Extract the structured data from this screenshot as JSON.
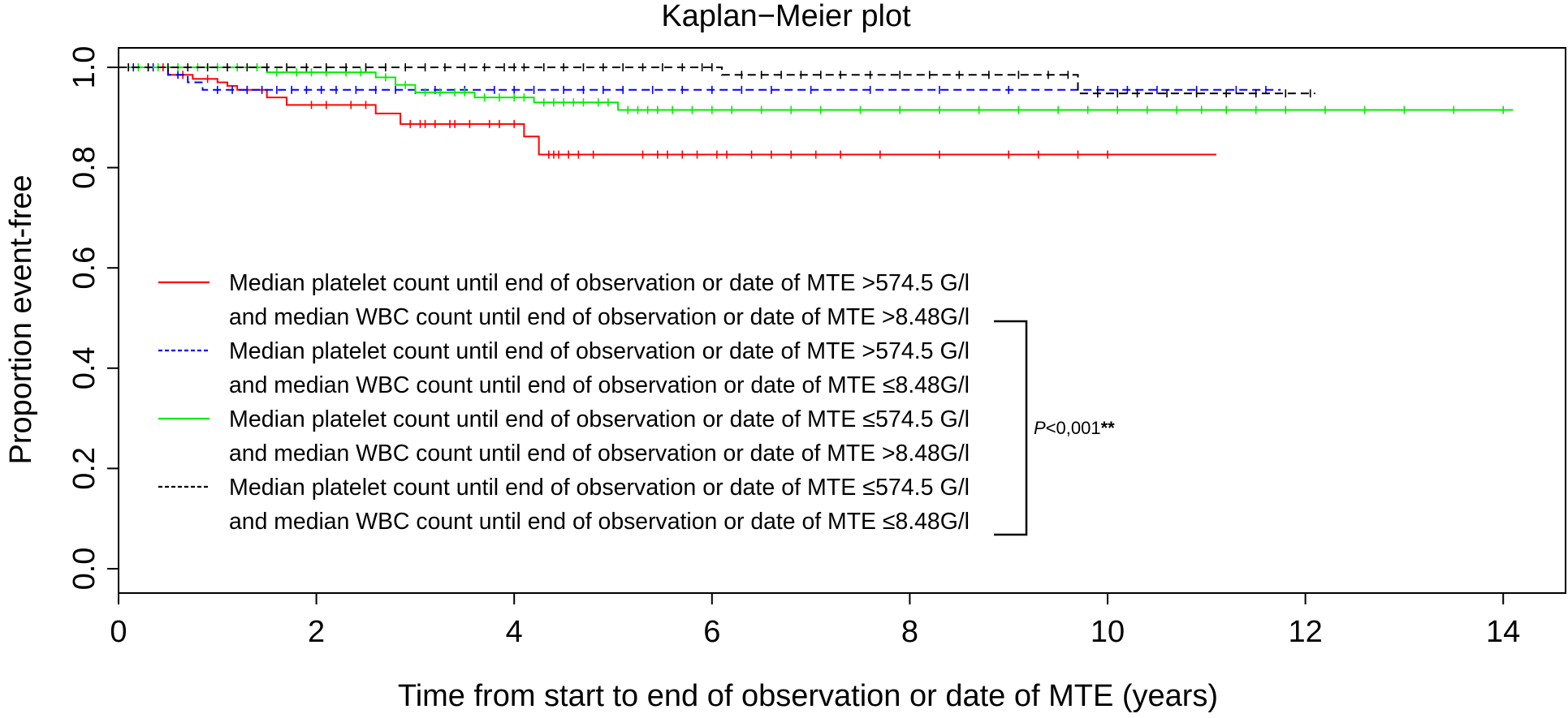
{
  "chart_data": {
    "type": "line",
    "title": "Kaplan−Meier plot",
    "xlabel": "Time from start to end of observation or date of MTE (years)",
    "ylabel": "Proportion event-free",
    "xlim": [
      0,
      14.5
    ],
    "ylim": [
      -0.04,
      1.04
    ],
    "xticks": [
      0,
      2,
      4,
      6,
      8,
      10,
      12,
      14
    ],
    "yticks": [
      0.0,
      0.2,
      0.4,
      0.6,
      0.8,
      1.0
    ],
    "xtick_labels": [
      "0",
      "2",
      "4",
      "6",
      "8",
      "10",
      "12",
      "14"
    ],
    "ytick_labels": [
      "0.0",
      "0.2",
      "0.4",
      "0.6",
      "0.8",
      "1.0"
    ],
    "grid": false,
    "legend_position": "left-center",
    "annotation": {
      "italic": "P",
      "text": "<0,001",
      "stars": "**"
    },
    "series": [
      {
        "legend_line1": "Median platelet count until end of observation or date of MTE >574.5 G/l",
        "legend_line2": "and median WBC count until end of observation or date of MTE >8.48G/l",
        "color": "#ff0000",
        "dash": "solid",
        "steps": [
          [
            0,
            1.0
          ],
          [
            0.5,
            0.985
          ],
          [
            0.75,
            0.977
          ],
          [
            1.0,
            0.97
          ],
          [
            1.1,
            0.963
          ],
          [
            1.2,
            0.955
          ],
          [
            1.5,
            0.94
          ],
          [
            1.7,
            0.925
          ],
          [
            2.6,
            0.908
          ],
          [
            2.85,
            0.887
          ],
          [
            4.1,
            0.862
          ],
          [
            4.25,
            0.826
          ],
          [
            11.1,
            0.826
          ]
        ],
        "censor_times": [
          0.1,
          0.3,
          0.45,
          0.65,
          0.9,
          1.3,
          1.95,
          2.1,
          2.35,
          2.5,
          2.95,
          3.05,
          3.1,
          3.2,
          3.35,
          3.4,
          3.55,
          3.75,
          3.85,
          4.0,
          4.35,
          4.4,
          4.45,
          4.55,
          4.65,
          4.8,
          5.3,
          5.45,
          5.55,
          5.7,
          5.85,
          6.05,
          6.15,
          6.4,
          6.6,
          6.8,
          7.05,
          7.3,
          7.7,
          8.3,
          9.0,
          9.3,
          9.7,
          10.0
        ]
      },
      {
        "legend_line1": "Median platelet count until end of observation or date of MTE >574.5 G/l",
        "legend_line2": "and median WBC count until end of observation or date of MTE ≤8.48G/l",
        "color": "#0000ff",
        "dash": "dashed",
        "steps": [
          [
            0,
            1.0
          ],
          [
            0.5,
            0.985
          ],
          [
            0.7,
            0.97
          ],
          [
            0.85,
            0.955
          ],
          [
            9.7,
            0.955
          ],
          [
            11.75,
            0.955
          ]
        ],
        "censor_times": [
          0.15,
          0.35,
          0.6,
          1.0,
          1.15,
          1.3,
          1.45,
          1.6,
          1.75,
          1.9,
          2.05,
          2.2,
          2.4,
          2.6,
          2.8,
          3.0,
          3.2,
          3.5,
          3.8,
          4.0,
          4.2,
          4.5,
          4.7,
          4.9,
          5.1,
          5.4,
          5.7,
          6.0,
          6.3,
          6.6,
          7.0,
          7.6,
          8.3,
          9.0,
          9.9,
          10.2,
          10.5,
          10.9,
          11.3,
          11.6
        ]
      },
      {
        "legend_line1": "Median platelet count until end of observation or date of MTE ≤574.5 G/l",
        "legend_line2": "and median WBC count until end of observation or date of MTE >8.48G/l",
        "color": "#00ee00",
        "dash": "solid",
        "steps": [
          [
            0,
            1.0
          ],
          [
            1.5,
            0.99
          ],
          [
            2.6,
            0.98
          ],
          [
            2.8,
            0.965
          ],
          [
            3.0,
            0.95
          ],
          [
            3.6,
            0.94
          ],
          [
            4.2,
            0.93
          ],
          [
            5.05,
            0.915
          ],
          [
            14.1,
            0.915
          ]
        ],
        "censor_times": [
          0.2,
          0.4,
          0.6,
          0.8,
          1.0,
          1.2,
          1.4,
          1.6,
          1.8,
          1.95,
          2.1,
          2.3,
          2.45,
          2.7,
          2.9,
          3.1,
          3.25,
          3.4,
          3.5,
          3.7,
          3.85,
          4.0,
          4.1,
          4.3,
          4.4,
          4.5,
          4.6,
          4.7,
          4.85,
          4.95,
          5.15,
          5.25,
          5.35,
          5.45,
          5.6,
          5.8,
          6.0,
          6.2,
          6.5,
          6.8,
          7.1,
          7.5,
          7.9,
          8.3,
          8.7,
          9.1,
          9.5,
          9.8,
          10.1,
          10.4,
          10.7,
          10.95,
          11.2,
          11.5,
          11.8,
          12.2,
          12.6,
          13.0,
          13.5,
          14.0
        ]
      },
      {
        "legend_line1": "Median platelet count until end of observation or date of MTE ≤574.5 G/l",
        "legend_line2": "and median WBC count until end of observation or date of MTE ≤8.48G/l",
        "color": "#000000",
        "dash": "dashed",
        "steps": [
          [
            0,
            1.0
          ],
          [
            6.1,
            0.985
          ],
          [
            9.7,
            0.948
          ],
          [
            12.1,
            0.948
          ]
        ],
        "censor_times": [
          0.1,
          0.3,
          0.5,
          0.7,
          0.9,
          1.1,
          1.3,
          1.5,
          1.7,
          1.9,
          2.1,
          2.3,
          2.5,
          2.7,
          2.9,
          3.1,
          3.3,
          3.5,
          3.7,
          3.9,
          4.0,
          4.1,
          4.3,
          4.5,
          4.7,
          4.9,
          5.1,
          5.3,
          5.5,
          5.7,
          5.9,
          6.0,
          6.3,
          6.5,
          6.7,
          6.9,
          7.1,
          7.3,
          7.6,
          7.9,
          8.2,
          8.5,
          8.8,
          9.1,
          9.4,
          9.6,
          9.9,
          10.1,
          10.3,
          10.6,
          10.9,
          11.2,
          11.5,
          11.8,
          12.05
        ]
      }
    ]
  }
}
